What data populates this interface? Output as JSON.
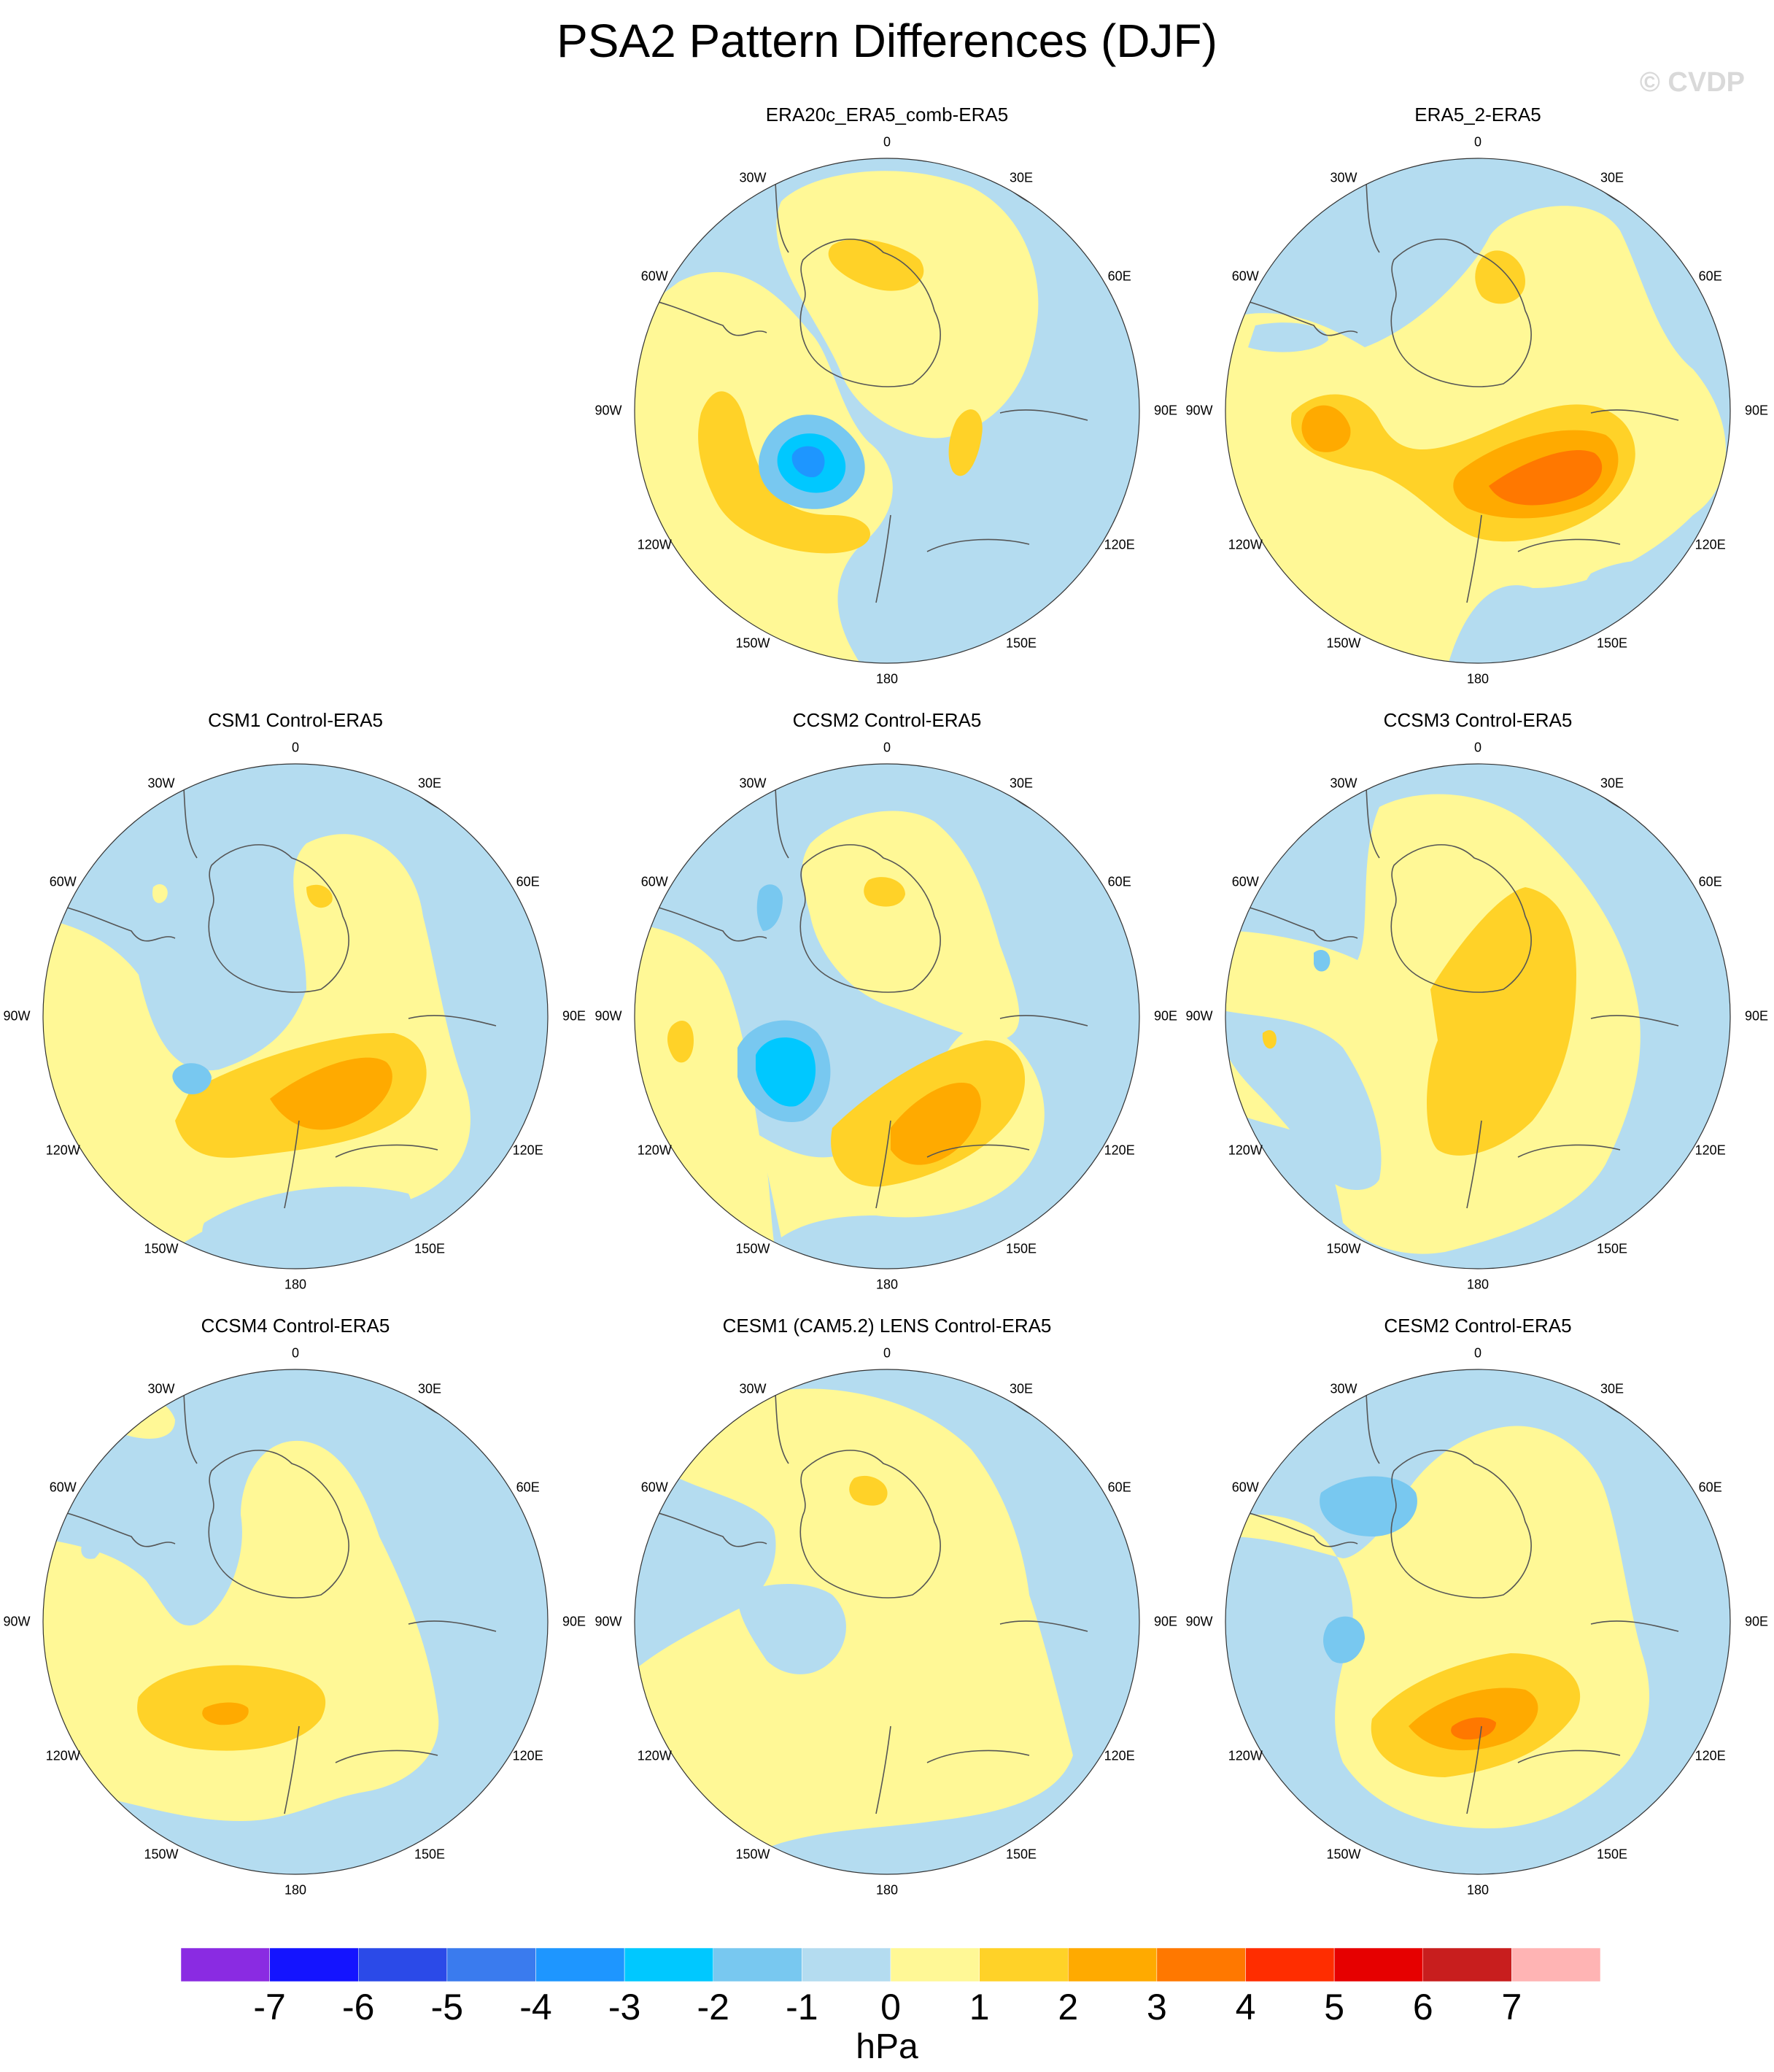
{
  "title": "PSA2 Pattern Differences (DJF)",
  "watermark": "© CVDP",
  "longitude_labels": [
    "0",
    "30E",
    "60E",
    "90E",
    "120E",
    "150E",
    "180",
    "150W",
    "120W",
    "90W",
    "60W",
    "30W"
  ],
  "panels": [
    {
      "name": "ERA20c_ERA5_comb-ERA5",
      "row": 0,
      "col": 1
    },
    {
      "name": "ERA5_2-ERA5",
      "row": 0,
      "col": 2
    },
    {
      "name": "CSM1 Control-ERA5",
      "row": 1,
      "col": 0
    },
    {
      "name": "CCSM2 Control-ERA5",
      "row": 1,
      "col": 1
    },
    {
      "name": "CCSM3 Control-ERA5",
      "row": 1,
      "col": 2
    },
    {
      "name": "CCSM4 Control-ERA5",
      "row": 2,
      "col": 0
    },
    {
      "name": "CESM1 (CAM5.2) LENS Control-ERA5",
      "row": 2,
      "col": 1
    },
    {
      "name": "CESM2 Control-ERA5",
      "row": 2,
      "col": 2
    }
  ],
  "colorbar": {
    "unit": "hPa",
    "ticks": [
      "-7",
      "-6",
      "-5",
      "-4",
      "-3",
      "-2",
      "-1",
      "0",
      "1",
      "2",
      "3",
      "4",
      "5",
      "6",
      "7"
    ],
    "colors": [
      "#8a2be2",
      "#1414ff",
      "#2b4ae8",
      "#3a7bee",
      "#1e96ff",
      "#00c8ff",
      "#78c8f0",
      "#b4dcf0",
      "#fff896",
      "#ffd228",
      "#ffaa00",
      "#ff7800",
      "#ff2d00",
      "#e60000",
      "#c81e1e",
      "#ffb4b4"
    ]
  }
}
